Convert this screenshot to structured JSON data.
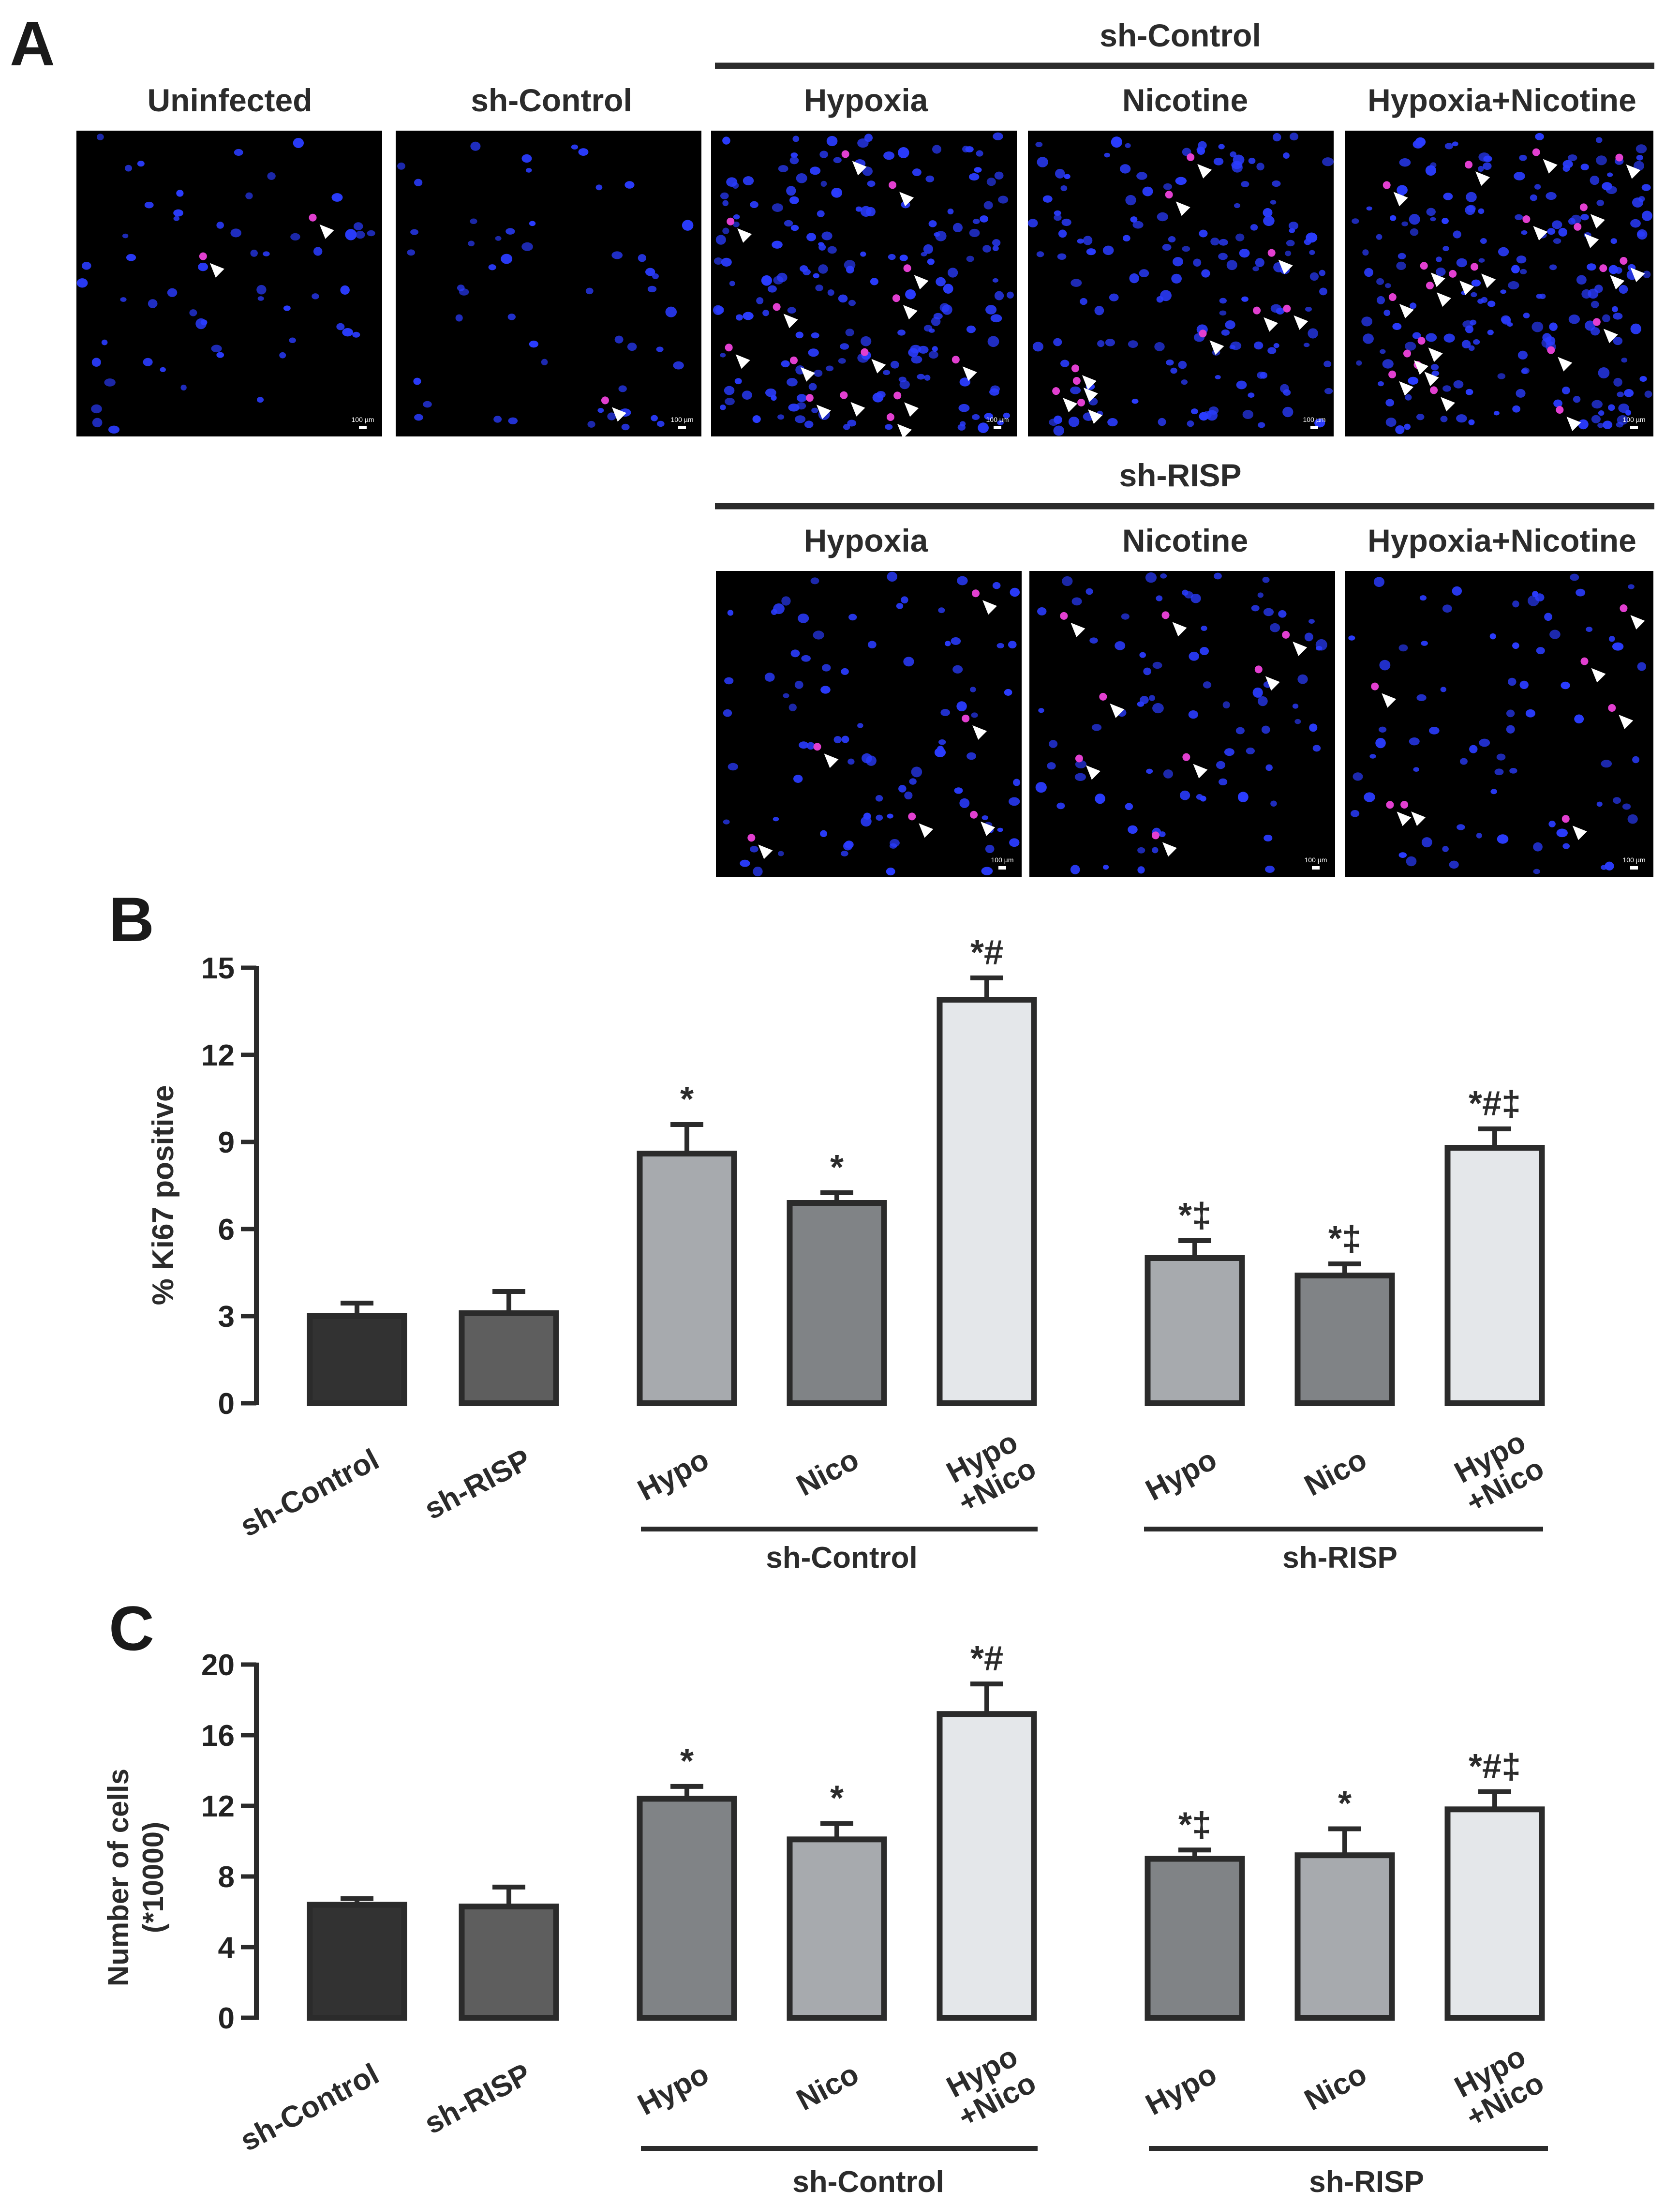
{
  "figure": {
    "panel_a": {
      "letter": "A",
      "top_group_label": "sh-Control",
      "bottom_group_label": "sh-RISP",
      "top_row_labels": [
        "Uninfected",
        "sh-Control",
        "Hypoxia",
        "Nicotine",
        "Hypoxia+Nicotine"
      ],
      "bottom_row_labels": [
        "Hypoxia",
        "Nicotine",
        "Hypoxia+Nicotine"
      ],
      "scale_bar_text": "100 µm",
      "stain_colors": {
        "nuclei": "#2a3cff",
        "ki67": "#e23fd0",
        "background": "#000000",
        "arrow": "#ffffff"
      },
      "positive_counts_top": [
        2,
        1,
        14,
        10,
        22
      ],
      "positive_counts_bottom": [
        6,
        8,
        7
      ]
    }
  },
  "chart_data": [
    {
      "panel": "B",
      "type": "bar",
      "ylabel": "% Ki67 positive",
      "ylim": [
        0,
        15
      ],
      "yticks": [
        "0",
        "3",
        "6",
        "9",
        "12",
        "15"
      ],
      "categories": [
        "sh-Control",
        "sh-RISP",
        "Hypo",
        "Nico",
        "Hypo +Nico",
        "Hypo",
        "Nico",
        "Hypo +Nico"
      ],
      "values": [
        3.0,
        3.1,
        8.6,
        6.9,
        13.9,
        5.0,
        4.4,
        8.8
      ],
      "errors": [
        0.45,
        0.75,
        1.0,
        0.35,
        0.75,
        0.6,
        0.4,
        0.65
      ],
      "significance": [
        "",
        "",
        "*",
        "*",
        "*#",
        "*‡",
        "*‡",
        "*#‡"
      ],
      "group_labels": [
        "sh-Control",
        "sh-RISP"
      ],
      "colors": [
        "#323232",
        "#5e5e5e",
        "#a7aaae",
        "#808386",
        "#e4e7ea",
        "#a7aaae",
        "#808386",
        "#e4e7ea"
      ]
    },
    {
      "panel": "C",
      "type": "bar",
      "ylabel": "Number of cells (*10000)",
      "ylim": [
        0,
        20
      ],
      "yticks": [
        "0",
        "4",
        "8",
        "12",
        "16",
        "20"
      ],
      "categories": [
        "sh-Control",
        "sh-RISP",
        "Hypo",
        "Nico",
        "Hypo +Nico",
        "Hypo",
        "Nico",
        "Hypo +Nico"
      ],
      "values": [
        6.4,
        6.3,
        12.4,
        10.1,
        17.2,
        9.0,
        9.2,
        11.8
      ],
      "errors": [
        0.35,
        1.1,
        0.7,
        0.9,
        1.7,
        0.5,
        1.5,
        1.0
      ],
      "significance": [
        "",
        "",
        "*",
        "*",
        "*#",
        "*‡",
        "*",
        "*#‡"
      ],
      "group_labels": [
        "sh-Control",
        "sh-RISP"
      ],
      "colors": [
        "#323232",
        "#5e5e5e",
        "#808386",
        "#a7aaae",
        "#e4e7ea",
        "#808386",
        "#a7aaae",
        "#e4e7ea"
      ]
    }
  ],
  "panel_letters": {
    "b": "B",
    "c": "C"
  },
  "y_label_parts": {
    "c_line1": "Number of cells",
    "c_line2": "(*10000)"
  },
  "x_label_parts": {
    "hypo": "Hypo",
    "nico_plus": "+Nico"
  }
}
